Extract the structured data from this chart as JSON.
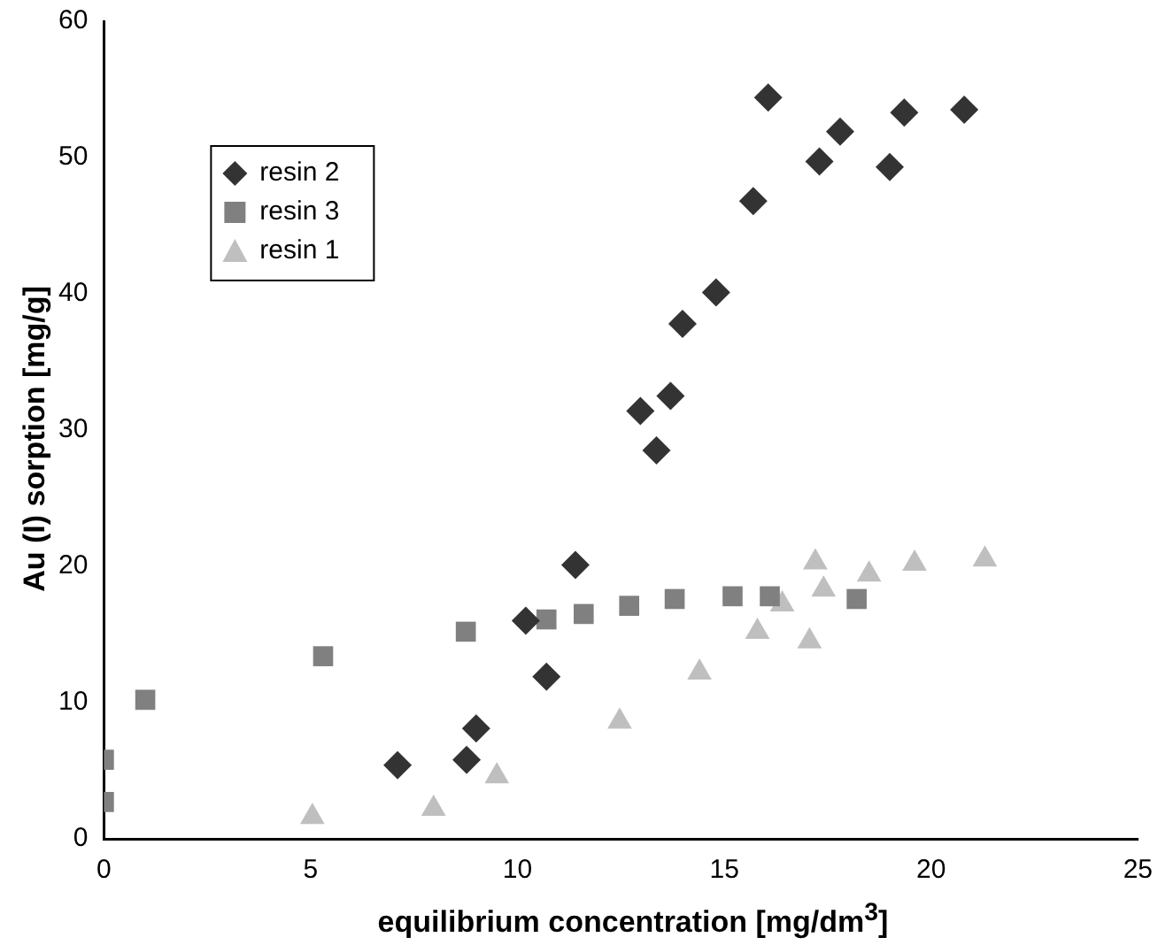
{
  "chart_data": {
    "type": "scatter",
    "xlabel": "equilibrium concentration [mg/dm$^{3}$]",
    "ylabel": "Au (I) sorption [mg/g]",
    "xlim": [
      0,
      25
    ],
    "xticks": [
      0,
      5,
      10,
      15,
      20,
      25
    ],
    "ylim": [
      0,
      60
    ],
    "yticks": [
      0,
      10,
      20,
      30,
      40,
      50,
      60
    ],
    "grid": false,
    "legend": "top left",
    "series": [
      {
        "name": "resin 2",
        "color": "#333333",
        "marker": "diamond",
        "x": [
          7.1,
          8.77,
          9.0,
          10.2,
          10.7,
          11.4,
          12.97,
          13.36,
          13.7,
          13.99,
          14.8,
          15.7,
          16.06,
          17.3,
          17.8,
          19.0,
          19.35,
          20.8
        ],
        "values": [
          5.4,
          5.8,
          8.1,
          16.0,
          11.9,
          20.1,
          31.4,
          28.5,
          32.5,
          37.8,
          40.1,
          46.8,
          54.4,
          49.7,
          51.9,
          49.3,
          53.3,
          53.5
        ]
      },
      {
        "name": "resin 3",
        "color": "#808080",
        "marker": "square",
        "x": [
          0,
          0,
          1.0,
          5.3,
          8.75,
          10.7,
          11.6,
          12.7,
          13.8,
          15.2,
          16.1,
          18.2
        ],
        "values": [
          2.7,
          5.8,
          10.2,
          13.4,
          15.2,
          16.1,
          16.5,
          17.1,
          17.6,
          17.8,
          17.8,
          17.6
        ]
      },
      {
        "name": "resin 1",
        "color": "#bfbfbf",
        "marker": "triangle",
        "x": [
          5.04,
          7.97,
          9.5,
          12.47,
          14.4,
          15.8,
          16.4,
          17.06,
          17.2,
          17.4,
          18.5,
          19.6,
          21.3
        ],
        "values": [
          1.6,
          2.2,
          4.6,
          8.6,
          12.2,
          15.2,
          17.2,
          14.5,
          20.3,
          18.3,
          19.4,
          20.2,
          20.5
        ]
      }
    ]
  }
}
